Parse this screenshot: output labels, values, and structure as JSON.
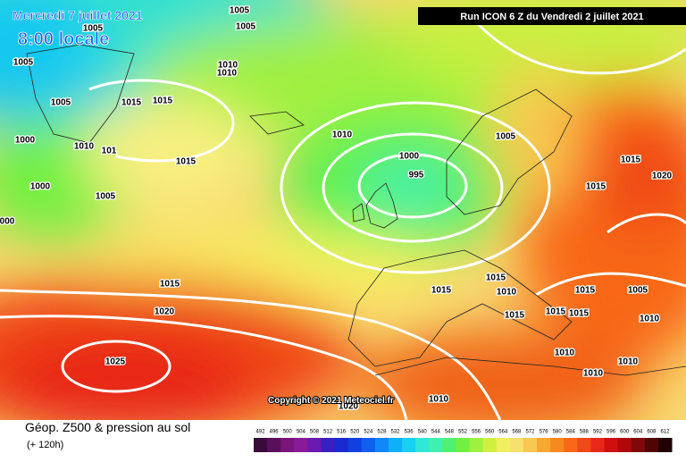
{
  "header": {
    "date": "Mercredi 7 juillet 2021",
    "time": "8:00 locale",
    "run": "Run ICON 6 Z du Vendredi 2 juillet 2021"
  },
  "copyright": "Copyright © 2021 Meteociel.fr",
  "legend": {
    "title": "Géop. Z500 & pression au sol",
    "subtitle": "(+ 120h)"
  },
  "isobars": [
    "1005",
    "1005",
    "1005",
    "1005",
    "1010",
    "1010",
    "1005",
    "1015",
    "1015",
    "1010",
    "1000",
    "1010",
    "101",
    "1015",
    "1000",
    "995",
    "1005",
    "1015",
    "1020",
    "1000",
    "1005",
    "1015",
    "000",
    "1015",
    "1015",
    "1015",
    "1010",
    "1015",
    "1005",
    "1020",
    "1015",
    "1015",
    "1015",
    "1010",
    "1010",
    "1025",
    "1010",
    "1010",
    "1010",
    "1020"
  ],
  "colorbar": {
    "labels": [
      "492",
      "496",
      "500",
      "504",
      "508",
      "512",
      "516",
      "520",
      "524",
      "528",
      "532",
      "536",
      "540",
      "544",
      "548",
      "552",
      "556",
      "560",
      "564",
      "568",
      "572",
      "576",
      "580",
      "584",
      "588",
      "592",
      "596",
      "600",
      "604",
      "608",
      "612"
    ],
    "colors": [
      "#3a0a3a",
      "#5a0f5a",
      "#7a157a",
      "#8a1a9a",
      "#6a1ab0",
      "#3a20c0",
      "#1a2ad0",
      "#1040e0",
      "#1060f0",
      "#1088f8",
      "#10b0f8",
      "#18d0f0",
      "#30e8d8",
      "#40f0b0",
      "#50f070",
      "#70f040",
      "#a0f040",
      "#d0f040",
      "#f0f060",
      "#f8e070",
      "#f8c850",
      "#f8a830",
      "#f88820",
      "#f86818",
      "#f04818",
      "#e82818",
      "#d01010",
      "#b00808",
      "#800808",
      "#500404",
      "#200202"
    ]
  }
}
